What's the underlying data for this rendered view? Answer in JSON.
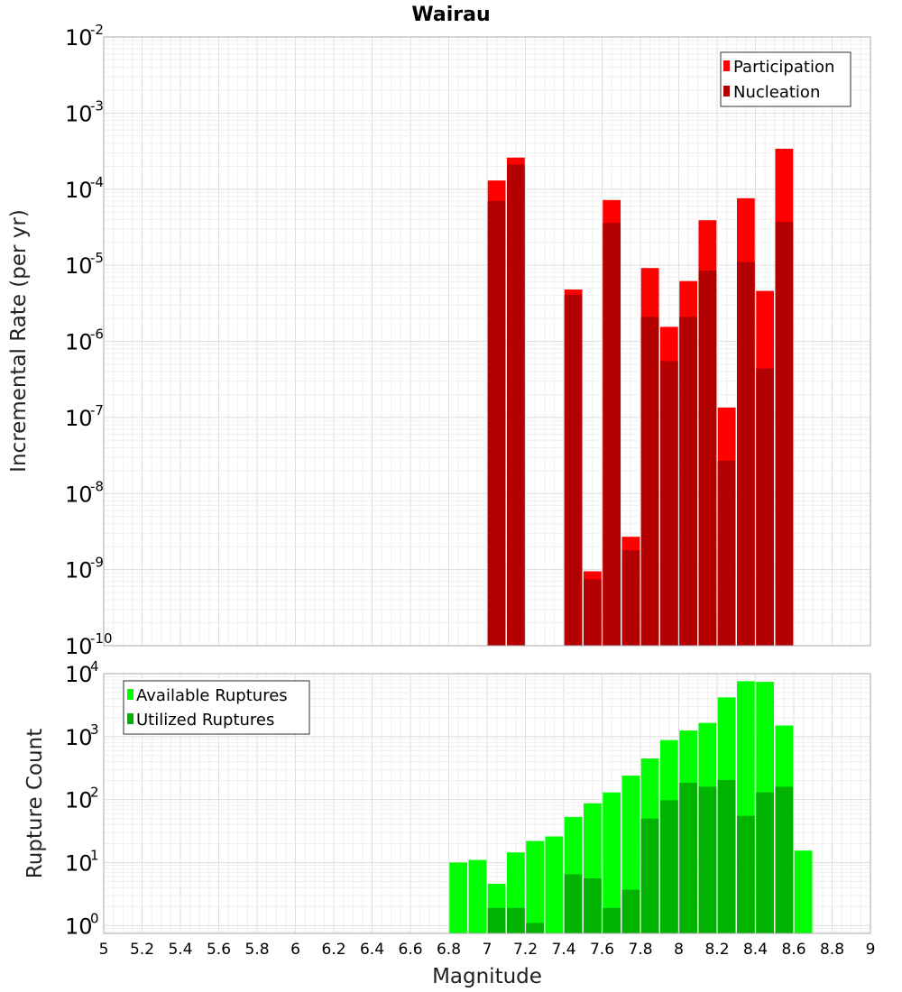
{
  "chart_data": [
    {
      "type": "bar",
      "title": "Wairau",
      "ylabel": "Incremental Rate (per yr)",
      "yscale": "log",
      "ylim": [
        1e-10,
        0.01
      ],
      "xlim": [
        5,
        9
      ],
      "grid": true,
      "legend_position": "top-right",
      "series": [
        {
          "name": "Participation",
          "color": "#ff0000",
          "x": [
            7.05,
            7.15,
            7.45,
            7.55,
            7.65,
            7.75,
            7.85,
            7.95,
            8.05,
            8.15,
            8.25,
            8.35,
            8.45,
            8.55
          ],
          "values": [
            0.00013,
            0.00026,
            4.8e-06,
            9.5e-10,
            7.2e-05,
            2.7e-09,
            9.2e-06,
            1.55e-06,
            6.2e-06,
            3.9e-05,
            1.35e-07,
            7.6e-05,
            4.6e-06,
            0.00034
          ]
        },
        {
          "name": "Nucleation",
          "color": "#b30000",
          "x": [
            7.05,
            7.15,
            7.45,
            7.55,
            7.65,
            7.75,
            7.85,
            7.95,
            8.05,
            8.15,
            8.25,
            8.35,
            8.45,
            8.55
          ],
          "values": [
            7e-05,
            0.00021,
            4.1e-06,
            7.5e-10,
            3.6e-05,
            1.8e-09,
            2.1e-06,
            5.5e-07,
            2.1e-06,
            8.5e-06,
            2.7e-08,
            1.1e-05,
            4.4e-07,
            3.7e-05
          ]
        }
      ]
    },
    {
      "type": "bar",
      "title": "",
      "xlabel": "Magnitude",
      "ylabel": "Rupture Count",
      "yscale": "log",
      "ylim": [
        0.75,
        10000
      ],
      "xlim": [
        5,
        9
      ],
      "grid": true,
      "legend_position": "top-left",
      "series": [
        {
          "name": "Available Ruptures",
          "color": "#00ff00",
          "x": [
            6.85,
            6.95,
            7.05,
            7.15,
            7.25,
            7.35,
            7.45,
            7.55,
            7.65,
            7.75,
            7.85,
            7.95,
            8.05,
            8.15,
            8.25,
            8.35,
            8.45,
            8.55,
            8.65
          ],
          "values": [
            10,
            11,
            4.6,
            14.5,
            22,
            26,
            53,
            87,
            130,
            240,
            450,
            880,
            1250,
            1650,
            4200,
            7600,
            7400,
            1500,
            15.5
          ]
        },
        {
          "name": "Utilized Ruptures",
          "color": "#00b300",
          "x": [
            7.05,
            7.15,
            7.25,
            7.45,
            7.55,
            7.65,
            7.75,
            7.85,
            7.95,
            8.05,
            8.15,
            8.25,
            8.35,
            8.45,
            8.55
          ],
          "values": [
            1.9,
            1.9,
            1.1,
            6.5,
            5.6,
            1.9,
            3.7,
            50,
            98,
            185,
            160,
            205,
            55,
            130,
            160
          ]
        }
      ]
    }
  ],
  "axes": {
    "x_ticks": [
      "5",
      "5.2",
      "5.4",
      "5.6",
      "5.8",
      "6",
      "6.2",
      "6.4",
      "6.6",
      "6.8",
      "7",
      "7.2",
      "7.4",
      "7.6",
      "7.8",
      "8",
      "8.2",
      "8.4",
      "8.6",
      "8.8",
      "9"
    ],
    "top_y_exponents": [
      "-2",
      "-3",
      "-4",
      "-5",
      "-6",
      "-7",
      "-8",
      "-9",
      "-10"
    ],
    "bottom_y_exponents": [
      "4",
      "3",
      "2",
      "1",
      "0"
    ],
    "y_base": "10"
  }
}
